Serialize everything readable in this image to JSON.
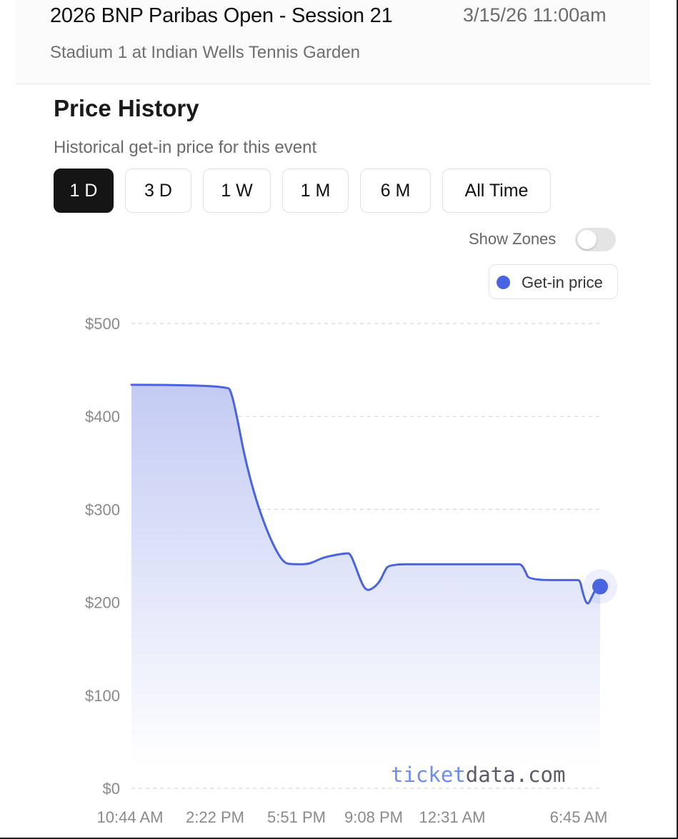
{
  "event": {
    "title": "2026 BNP Paribas Open - Session 21",
    "datetime": "3/15/26 11:00am",
    "venue": "Stadium 1 at Indian Wells Tennis Garden"
  },
  "price_history": {
    "title": "Price History",
    "subtitle": "Historical get-in price for this event",
    "ranges": [
      {
        "label": "1 D",
        "active": true
      },
      {
        "label": "3 D",
        "active": false
      },
      {
        "label": "1 W",
        "active": false
      },
      {
        "label": "1 M",
        "active": false
      },
      {
        "label": "6 M",
        "active": false
      },
      {
        "label": "All Time",
        "active": false
      }
    ],
    "show_zones_label": "Show Zones",
    "show_zones_on": false,
    "legend_label": "Get-in price",
    "watermark": {
      "part1": "ticket",
      "part2": "data.com"
    }
  },
  "colors": {
    "accent": "#4a63e0",
    "grid": "#d6d6d6",
    "watermark_part1": "#6c8cf0",
    "watermark_part2": "#5a5a6a"
  },
  "chart_data": {
    "type": "area",
    "ylabel": "",
    "xlabel": "",
    "ylim": [
      0,
      500
    ],
    "yticks": [
      "$500",
      "$400",
      "$300",
      "$200",
      "$100",
      "$0"
    ],
    "ytick_values": [
      500,
      400,
      300,
      200,
      100,
      0
    ],
    "xticks": [
      "10:44 AM",
      "2:22 PM",
      "5:51 PM",
      "9:08 PM",
      "12:31 AM",
      "6:45 AM"
    ],
    "xtick_hours": [
      0,
      3.63,
      7.12,
      10.4,
      13.78,
      20.02
    ],
    "grid": true,
    "series": [
      {
        "name": "Get-in price",
        "points": [
          [
            0,
            434
          ],
          [
            3.1,
            434
          ],
          [
            3.25,
            425
          ],
          [
            3.45,
            395
          ],
          [
            3.65,
            360
          ],
          [
            3.95,
            320
          ],
          [
            4.3,
            285
          ],
          [
            4.65,
            258
          ],
          [
            4.95,
            242
          ],
          [
            5.25,
            241
          ],
          [
            5.7,
            241
          ],
          [
            5.95,
            244
          ],
          [
            6.2,
            248
          ],
          [
            6.6,
            251
          ],
          [
            7.0,
            253
          ],
          [
            7.1,
            252
          ],
          [
            7.25,
            240
          ],
          [
            7.45,
            222
          ],
          [
            7.6,
            213
          ],
          [
            7.8,
            214
          ],
          [
            8.05,
            222
          ],
          [
            8.2,
            233
          ],
          [
            8.35,
            241
          ],
          [
            9.5,
            241
          ],
          [
            12.5,
            241
          ],
          [
            12.65,
            241
          ],
          [
            12.78,
            233
          ],
          [
            12.9,
            224
          ],
          [
            14.4,
            224
          ],
          [
            14.55,
            224
          ],
          [
            14.62,
            212
          ],
          [
            14.78,
            196
          ],
          [
            14.92,
            205
          ],
          [
            15.05,
            214
          ],
          [
            15.2,
            217
          ]
        ]
      }
    ],
    "current_point": {
      "x": 15.2,
      "y": 217
    }
  }
}
